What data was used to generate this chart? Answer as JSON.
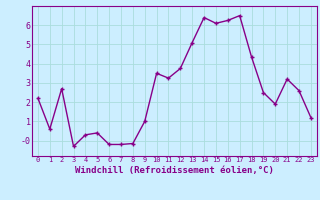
{
  "x": [
    0,
    1,
    2,
    3,
    4,
    5,
    6,
    7,
    8,
    9,
    10,
    11,
    12,
    13,
    14,
    15,
    16,
    17,
    18,
    19,
    20,
    21,
    22,
    23
  ],
  "y": [
    2.2,
    0.6,
    2.7,
    -0.3,
    0.3,
    0.4,
    -0.2,
    -0.2,
    -0.15,
    1.0,
    3.5,
    3.25,
    3.75,
    5.1,
    6.4,
    6.1,
    6.25,
    6.5,
    4.35,
    2.5,
    1.9,
    3.2,
    2.6,
    1.2
  ],
  "line_color": "#880088",
  "marker": "+",
  "markersize": 3.5,
  "linewidth": 1.0,
  "markeredgewidth": 1.0,
  "xlabel": "Windchill (Refroidissement éolien,°C)",
  "xlabel_fontsize": 6.5,
  "ylim": [
    -0.8,
    7.0
  ],
  "xlim": [
    -0.5,
    23.5
  ],
  "yticks": [
    0,
    1,
    2,
    3,
    4,
    5,
    6
  ],
  "ytick_labels": [
    "-0",
    "1",
    "2",
    "3",
    "4",
    "5",
    "6"
  ],
  "xticks": [
    0,
    1,
    2,
    3,
    4,
    5,
    6,
    7,
    8,
    9,
    10,
    11,
    12,
    13,
    14,
    15,
    16,
    17,
    18,
    19,
    20,
    21,
    22,
    23
  ],
  "bg_color": "#cceeff",
  "grid_color": "#aadddd",
  "tick_color": "#880088",
  "spine_color": "#880088"
}
